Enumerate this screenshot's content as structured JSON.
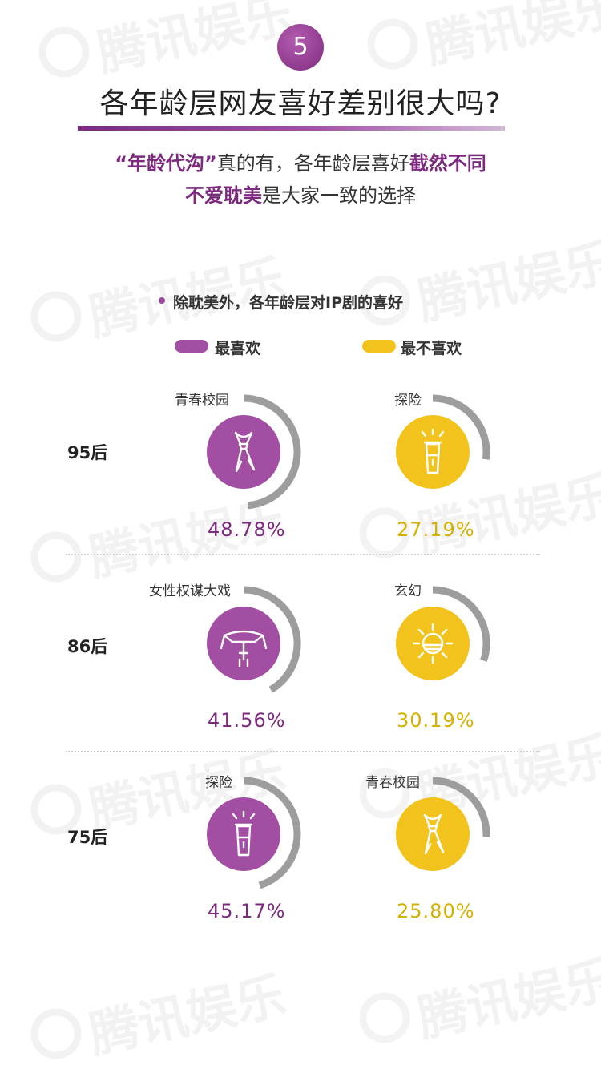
{
  "section_number": "5",
  "title": "各年龄层网友喜好差别很大吗?",
  "subtitle": {
    "line1_bold1": "“年龄代沟”",
    "line1_text": "真的有，各年龄层喜好",
    "line1_bold2": "截然不同",
    "line2_bold": "不爱耽美",
    "line2_text": "是大家一致的选择"
  },
  "watermark": "腾讯娱乐",
  "chart_title": "除耽美外，各年龄层对IP剧的喜好",
  "colors": {
    "most_liked": "#a24ea3",
    "least_liked": "#f2c31c",
    "ring": "#9d9d9d"
  },
  "chart_data": {
    "type": "donut",
    "title": "除耽美外，各年龄层对IP剧的喜好",
    "legend": [
      "最喜欢",
      "最不喜欢"
    ],
    "groups": [
      {
        "age": "95后",
        "most_liked": {
          "category": "青春校园",
          "percent_label": "48.78%",
          "value": 48.78,
          "icon": "necktie-icon"
        },
        "least_liked": {
          "category": "探险",
          "percent_label": "27.19%",
          "value": 27.19,
          "icon": "flashlight-icon"
        }
      },
      {
        "age": "86后",
        "most_liked": {
          "category": "女性权谋大戏",
          "percent_label": "41.56%",
          "value": 41.56,
          "icon": "hairpin-icon"
        },
        "least_liked": {
          "category": "玄幻",
          "percent_label": "30.19%",
          "value": 30.19,
          "icon": "crystal-orb-icon"
        }
      },
      {
        "age": "75后",
        "most_liked": {
          "category": "探险",
          "percent_label": "45.17%",
          "value": 45.17,
          "icon": "flashlight-icon"
        },
        "least_liked": {
          "category": "青春校园",
          "percent_label": "25.80%",
          "value": 25.8,
          "icon": "necktie-icon"
        }
      }
    ]
  }
}
